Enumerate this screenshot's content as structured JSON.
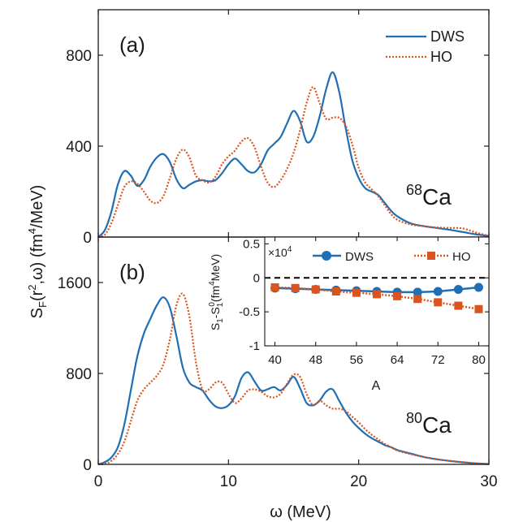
{
  "colors": {
    "dws": "#1f6fb4",
    "ho": "#d9541e",
    "axis": "#1a1a1a",
    "zero_line": "#000000"
  },
  "figure": {
    "ylabel_pre": "S",
    "ylabel_sub": "F",
    "ylabel_mid": "(r",
    "ylabel_sup": "2",
    "ylabel_omega": ",ω) (fm",
    "ylabel_sup2": "4",
    "ylabel_post": "/MeV)",
    "xlabel": "ω (MeV)"
  },
  "chart_data": [
    {
      "type": "line",
      "panel_label": "(a)",
      "annotation_mass": "68",
      "annotation_element": "Ca",
      "xlim": [
        0,
        30
      ],
      "ylim": [
        0,
        1000
      ],
      "yticks": [
        0,
        400,
        800
      ],
      "xticks": [
        0,
        10,
        20,
        30
      ],
      "xtick_labels_shown": false,
      "legend": "top-right",
      "series": [
        {
          "name": "DWS",
          "style": "solid",
          "x": [
            0,
            0.5,
            1,
            1.5,
            2,
            2.5,
            3,
            3.5,
            4,
            4.5,
            5,
            5.5,
            6,
            6.5,
            7,
            7.5,
            8,
            8.5,
            9,
            9.5,
            10,
            10.5,
            11,
            11.5,
            12,
            12.5,
            13,
            13.5,
            14,
            14.5,
            15,
            15.5,
            16,
            16.5,
            17,
            17.5,
            18,
            18.5,
            19,
            19.5,
            20,
            20.5,
            21,
            21.5,
            22,
            22.5,
            23,
            24,
            25,
            26,
            27,
            28,
            29,
            30
          ],
          "y": [
            0,
            30,
            110,
            230,
            290,
            270,
            225,
            250,
            310,
            350,
            365,
            330,
            255,
            215,
            230,
            245,
            250,
            245,
            250,
            280,
            320,
            345,
            320,
            290,
            285,
            320,
            380,
            410,
            440,
            500,
            555,
            510,
            420,
            440,
            530,
            650,
            725,
            640,
            480,
            340,
            260,
            215,
            200,
            185,
            150,
            115,
            90,
            60,
            48,
            40,
            32,
            22,
            12,
            5
          ]
        },
        {
          "name": "HO",
          "style": "dotted",
          "x": [
            0,
            0.5,
            1,
            1.5,
            2,
            2.5,
            3,
            3.5,
            4,
            4.5,
            5,
            5.5,
            6,
            6.5,
            7,
            7.5,
            8,
            8.5,
            9,
            9.5,
            10,
            10.5,
            11,
            11.5,
            12,
            12.5,
            13,
            13.5,
            14,
            14.5,
            15,
            15.5,
            16,
            16.5,
            17,
            17.5,
            18,
            18.5,
            19,
            19.5,
            20,
            20.5,
            21,
            21.5,
            22,
            22.5,
            23,
            24,
            25,
            26,
            27,
            28,
            29,
            30
          ],
          "y": [
            0,
            10,
            60,
            140,
            220,
            245,
            235,
            200,
            160,
            150,
            180,
            260,
            345,
            385,
            350,
            270,
            250,
            240,
            265,
            320,
            355,
            380,
            420,
            435,
            395,
            310,
            240,
            220,
            250,
            300,
            370,
            470,
            590,
            660,
            590,
            520,
            525,
            525,
            490,
            410,
            305,
            240,
            210,
            180,
            140,
            100,
            75,
            55,
            48,
            42,
            40,
            38,
            20,
            5
          ]
        }
      ]
    },
    {
      "type": "line",
      "panel_label": "(b)",
      "annotation_mass": "80",
      "annotation_element": "Ca",
      "xlim": [
        0,
        30
      ],
      "ylim": [
        0,
        2000
      ],
      "yticks": [
        0,
        800,
        1600
      ],
      "xticks": [
        0,
        10,
        20,
        30
      ],
      "series": [
        {
          "name": "DWS",
          "style": "solid",
          "x": [
            0,
            0.5,
            1,
            1.5,
            2,
            2.5,
            3,
            3.5,
            4,
            4.5,
            5,
            5.5,
            6,
            6.5,
            7,
            7.5,
            8,
            8.5,
            9,
            9.5,
            10,
            10.5,
            11,
            11.5,
            12,
            12.5,
            13,
            13.5,
            14,
            14.5,
            15,
            15.5,
            16,
            16.5,
            17,
            17.5,
            18,
            18.5,
            19,
            19.5,
            20,
            20.5,
            21,
            21.5,
            22,
            22.5,
            23,
            24,
            25,
            26,
            27,
            28,
            29,
            30
          ],
          "y": [
            0,
            20,
            60,
            150,
            350,
            650,
            950,
            1150,
            1280,
            1400,
            1470,
            1380,
            1130,
            850,
            720,
            680,
            650,
            570,
            510,
            495,
            520,
            600,
            760,
            810,
            730,
            650,
            660,
            680,
            650,
            700,
            770,
            670,
            540,
            520,
            560,
            640,
            660,
            560,
            460,
            380,
            320,
            270,
            230,
            200,
            170,
            150,
            125,
            95,
            65,
            45,
            30,
            18,
            8,
            3
          ]
        },
        {
          "name": "HO",
          "style": "dotted",
          "x": [
            0,
            0.5,
            1,
            1.5,
            2,
            2.5,
            3,
            3.5,
            4,
            4.5,
            5,
            5.5,
            6,
            6.5,
            7,
            7.5,
            8,
            8.5,
            9,
            9.5,
            10,
            10.5,
            11,
            11.5,
            12,
            12.5,
            13,
            13.5,
            14,
            14.5,
            15,
            15.5,
            16,
            16.5,
            17,
            17.5,
            18,
            18.5,
            19,
            19.5,
            20,
            20.5,
            21,
            21.5,
            22,
            22.5,
            23,
            24,
            25,
            26,
            27,
            28,
            29,
            30
          ],
          "y": [
            0,
            5,
            30,
            90,
            200,
            380,
            560,
            660,
            720,
            780,
            880,
            1100,
            1400,
            1500,
            1300,
            900,
            660,
            660,
            720,
            720,
            620,
            540,
            580,
            650,
            660,
            640,
            600,
            590,
            620,
            710,
            790,
            770,
            620,
            520,
            560,
            520,
            490,
            490,
            470,
            420,
            370,
            310,
            260,
            220,
            180,
            150,
            120,
            90,
            65,
            45,
            30,
            20,
            10,
            3
          ]
        }
      ]
    },
    {
      "type": "line",
      "inset": true,
      "ylabel_main": "S",
      "ylabel_sub1": "1",
      "ylabel_dash": "-S",
      "ylabel_sub2": "1",
      "ylabel_sup2": "0",
      "ylabel_unit": "(fm",
      "ylabel_unit_sup": "4",
      "ylabel_unit_post": "MeV)",
      "multiplier_prefix": "×10",
      "multiplier_exp": "4",
      "xlabel": "A",
      "xlim": [
        38,
        82
      ],
      "ylim": [
        -1,
        0.6
      ],
      "yticks": [
        -1,
        -0.5,
        0,
        0.5
      ],
      "ytick_labels": [
        "-1",
        "-0.5",
        "0",
        "0.5"
      ],
      "xticks": [
        40,
        48,
        56,
        64,
        72,
        80
      ],
      "zero_line": "dashed",
      "legend": "top",
      "series": [
        {
          "name": "DWS",
          "marker": "circle",
          "style": "solid",
          "x": [
            40,
            44,
            48,
            52,
            56,
            60,
            64,
            68,
            72,
            76,
            80
          ],
          "y": [
            -0.15,
            -0.16,
            -0.17,
            -0.18,
            -0.19,
            -0.2,
            -0.21,
            -0.21,
            -0.2,
            -0.17,
            -0.14
          ]
        },
        {
          "name": "HO",
          "marker": "square",
          "style": "dotted",
          "x": [
            40,
            44,
            48,
            52,
            56,
            60,
            64,
            68,
            72,
            76,
            80
          ],
          "y": [
            -0.14,
            -0.15,
            -0.17,
            -0.2,
            -0.22,
            -0.24,
            -0.27,
            -0.31,
            -0.36,
            -0.41,
            -0.46
          ]
        }
      ]
    }
  ]
}
